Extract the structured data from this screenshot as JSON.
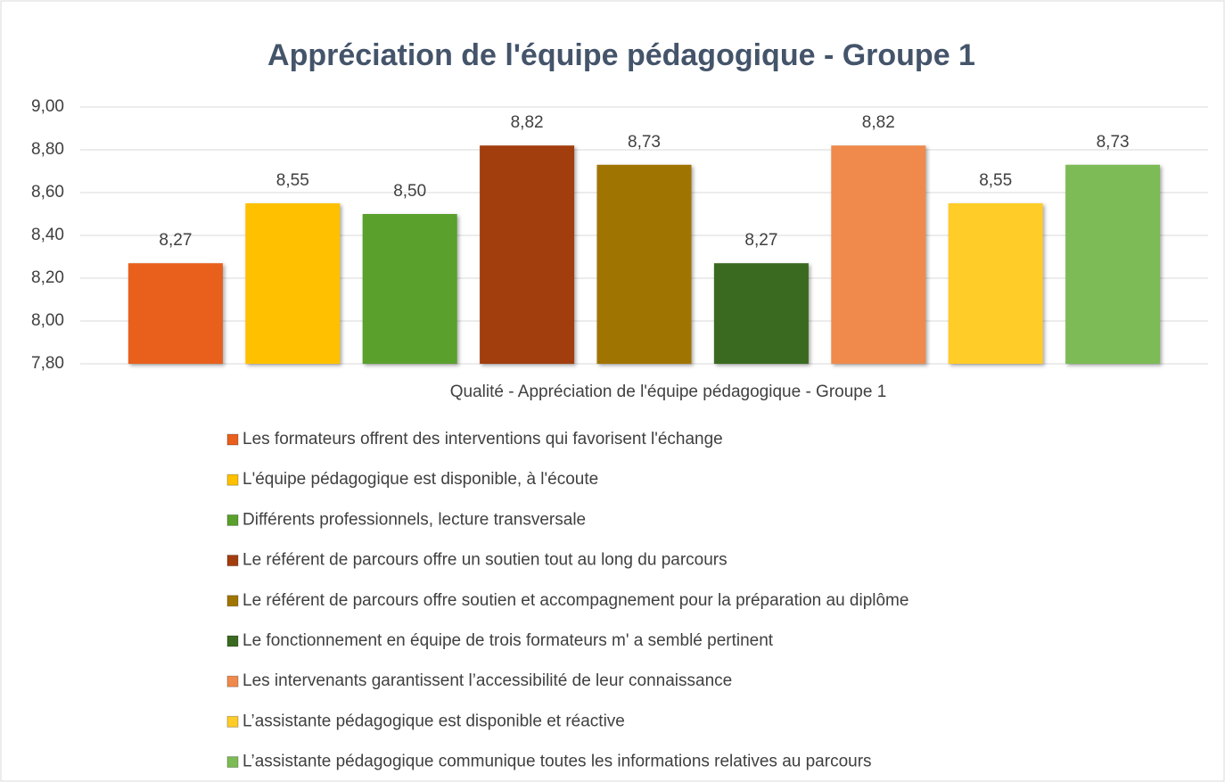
{
  "chart_data": {
    "type": "bar",
    "title": "Appréciation de l'équipe pédagogique - Groupe 1",
    "categories": [
      "Qualité - Appréciation de l'équipe pédagogique - Groupe 1"
    ],
    "series": [
      {
        "name": "Les formateurs offrent des interventions qui favorisent l'échange",
        "color": "#e8601c",
        "values": [
          8.27
        ],
        "value_labels": [
          "8,27"
        ]
      },
      {
        "name": "L'équipe pédagogique est disponible, à l'écoute",
        "color": "#ffc000",
        "values": [
          8.55
        ],
        "value_labels": [
          "8,55"
        ]
      },
      {
        "name": "Différents professionnels, lecture transversale",
        "color": "#5aa02c",
        "values": [
          8.5
        ],
        "value_labels": [
          "8,50"
        ]
      },
      {
        "name": "Le référent de parcours offre un soutien tout au long du parcours",
        "color": "#a23d0e",
        "values": [
          8.82
        ],
        "value_labels": [
          "8,82"
        ]
      },
      {
        "name": "Le référent de parcours offre soutien et accompagnement pour la préparation au diplôme",
        "color": "#a07400",
        "values": [
          8.73
        ],
        "value_labels": [
          "8,73"
        ]
      },
      {
        "name": "Le fonctionnement en équipe de trois formateurs m' a semblé pertinent",
        "color": "#3a6a20",
        "values": [
          8.27
        ],
        "value_labels": [
          "8,27"
        ]
      },
      {
        "name": "Les intervenants garantissent l’accessibilité de leur connaissance",
        "color": "#ef8a4c",
        "values": [
          8.82
        ],
        "value_labels": [
          "8,82"
        ]
      },
      {
        "name": "L’assistante pédagogique est disponible et réactive",
        "color": "#ffcc28",
        "values": [
          8.55
        ],
        "value_labels": [
          "8,55"
        ]
      },
      {
        "name": "L’assistante pédagogique communique toutes les informations relatives au parcours",
        "color": "#7cbb55",
        "values": [
          8.73
        ],
        "value_labels": [
          "8,73"
        ]
      }
    ],
    "ylim": [
      7.8,
      9.0
    ],
    "yticks": [
      {
        "value": 7.8,
        "label": "7,80"
      },
      {
        "value": 8.0,
        "label": "8,00"
      },
      {
        "value": 8.2,
        "label": "8,20"
      },
      {
        "value": 8.4,
        "label": "8,40"
      },
      {
        "value": 8.6,
        "label": "8,60"
      },
      {
        "value": 8.8,
        "label": "8,80"
      },
      {
        "value": 9.0,
        "label": "9,00"
      }
    ],
    "grid": true
  }
}
